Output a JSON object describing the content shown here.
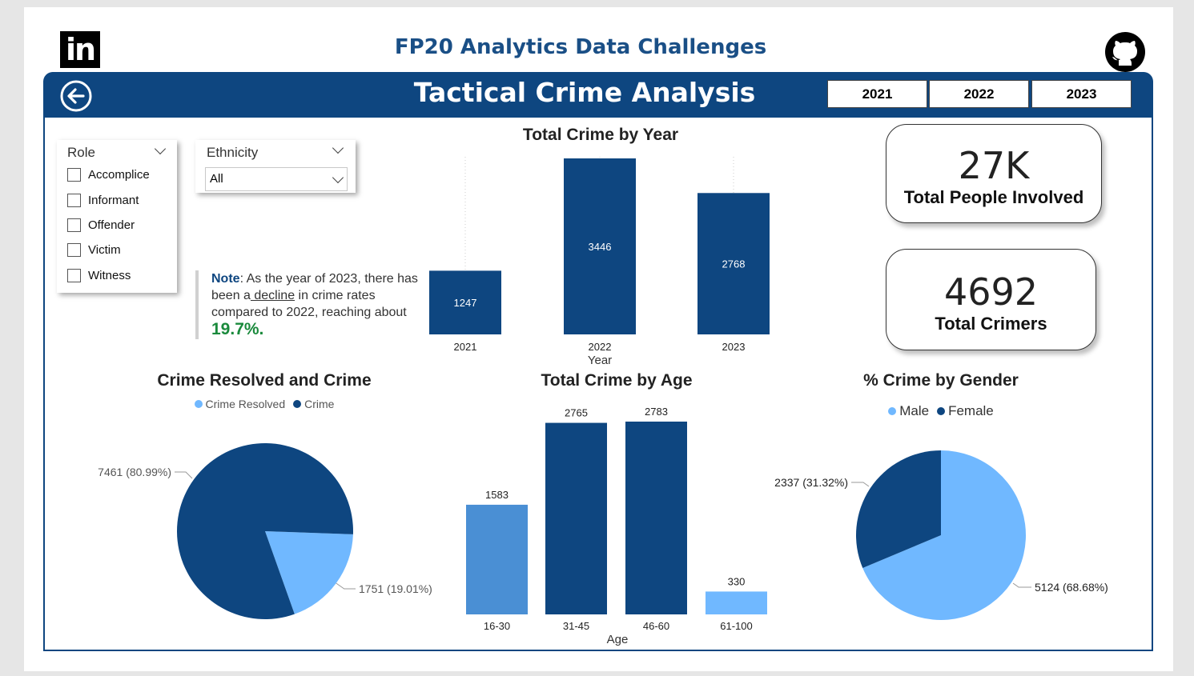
{
  "header": {
    "top_title": "FP20 Analytics Data Challenges",
    "banner_title": "Tactical Crime Analysis",
    "year_buttons": [
      "2021",
      "2022",
      "2023"
    ]
  },
  "icons": {
    "linkedin": "linkedin-icon",
    "github": "github-icon",
    "back": "back-arrow-icon"
  },
  "colors": {
    "primary": "#0e4680",
    "light_blue": "#70b8ff",
    "mid_blue": "#4a8fd4",
    "accent_green": "#1a8a3c"
  },
  "filters": {
    "role": {
      "title": "Role",
      "options": [
        "Accomplice",
        "Informant",
        "Offender",
        "Victim",
        "Witness"
      ]
    },
    "ethnicity": {
      "title": "Ethnicity",
      "selected": "All"
    }
  },
  "note": {
    "label": "Note",
    "text_1": ": As the year of 2023, there has been a",
    "link": " decline",
    "text_2": " in crime rates compared to 2022, reaching about ",
    "pct": "19.7%."
  },
  "kpis": [
    {
      "value": "27K",
      "label": "Total People Involved"
    },
    {
      "value": "4692",
      "label": "Total Crimers"
    }
  ],
  "chart_data": [
    {
      "type": "bar",
      "title": "Total Crime by Year",
      "xlabel": "Year",
      "ylabel": "",
      "categories": [
        "2021",
        "2022",
        "2023"
      ],
      "values": [
        1247,
        3446,
        2768
      ]
    },
    {
      "type": "pie",
      "title": "Crime Resolved and Crime",
      "labels": [
        "Crime Resolved",
        "Crime"
      ],
      "values": [
        1751,
        7461
      ],
      "percents": [
        19.01,
        80.99
      ],
      "data_labels": [
        "1751 (19.01%)",
        "7461 (80.99%)"
      ]
    },
    {
      "type": "bar",
      "title": "Total Crime by Age",
      "xlabel": "Age",
      "ylabel": "",
      "categories": [
        "16-30",
        "31-45",
        "46-60",
        "61-100"
      ],
      "values": [
        1583,
        2765,
        2783,
        330
      ]
    },
    {
      "type": "pie",
      "title": "% Crime by Gender",
      "labels": [
        "Male",
        "Female"
      ],
      "values": [
        5124,
        2337
      ],
      "percents": [
        68.68,
        31.32
      ],
      "data_labels": [
        "5124 (68.68%)",
        "2337 (31.32%)"
      ]
    }
  ]
}
